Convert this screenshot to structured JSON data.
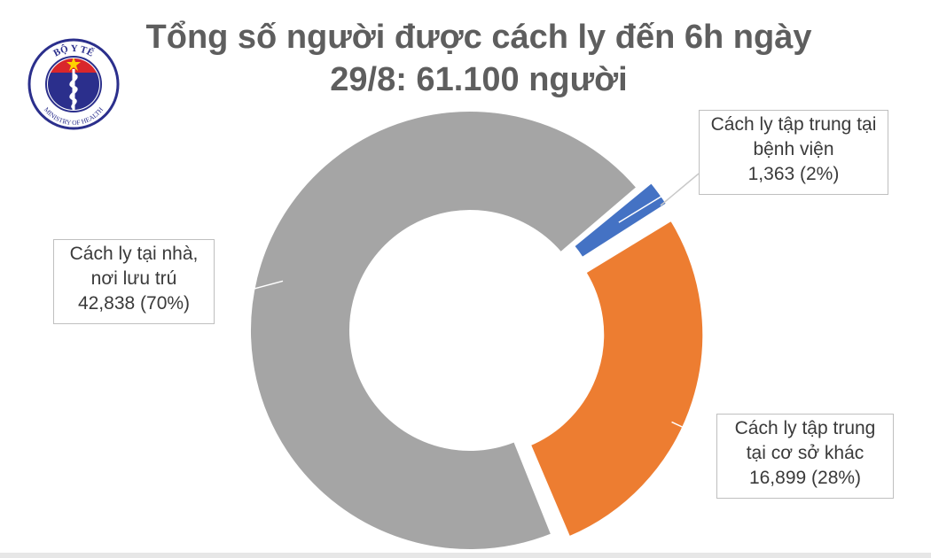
{
  "title": {
    "line1": "Tổng số người được cách ly đến 6h ngày",
    "line2": "29/8: 61.100 người"
  },
  "logo": {
    "name": "ministry-of-health-logo",
    "top_text": "BỘ Y TẾ",
    "bottom_text": "MINISTRY OF HEALTH",
    "colors": {
      "ring": "#2b2f8c",
      "flag": "#d9262b",
      "star": "#ffd200"
    }
  },
  "chart_data": {
    "type": "donut",
    "total": 61100,
    "title": "Tổng số người được cách ly đến 6h ngày 29/8: 61.100 người",
    "slices": [
      {
        "label_lines": [
          "Cách ly tập trung tại",
          "bệnh viện"
        ],
        "value_text": "1,363 (2%)",
        "value": 1363,
        "percent": 2,
        "color": "#4472c4",
        "exploded": true
      },
      {
        "label_lines": [
          "Cách ly tập trung",
          "tại cơ sở khác"
        ],
        "value_text": "16,899 (28%)",
        "value": 16899,
        "percent": 28,
        "color": "#ed7d31",
        "exploded": true
      },
      {
        "label_lines": [
          "Cách ly tại nhà,",
          "nơi lưu trú"
        ],
        "value_text": "42,838 (70%)",
        "value": 42838,
        "percent": 70,
        "color": "#a5a5a5",
        "exploded": false
      }
    ]
  }
}
